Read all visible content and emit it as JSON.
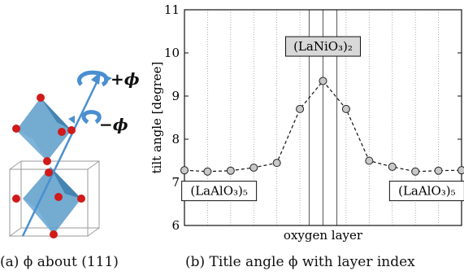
{
  "figure_a": {
    "label_plus": "+ϕ",
    "label_minus": "−ϕ",
    "caption": "(a) ϕ about (111)"
  },
  "figure_b": {
    "caption": "(b) Title angle ϕ with layer index"
  },
  "chart_data": {
    "type": "line",
    "title": "",
    "xlabel": "oxygen layer",
    "ylabel": "tilt angle [degree]",
    "x": [
      1,
      2,
      3,
      4,
      5,
      6,
      7,
      8,
      9,
      10,
      11,
      12,
      13
    ],
    "series": [
      {
        "name": "",
        "values": [
          7.28,
          7.25,
          7.27,
          7.34,
          7.45,
          8.7,
          9.35,
          8.7,
          7.5,
          7.36,
          7.25,
          7.27,
          7.28
        ]
      }
    ],
    "ylim": [
      6,
      11
    ],
    "yticks": [
      6,
      7,
      8,
      9,
      10,
      11
    ],
    "xticks_shown": false,
    "grid": "vertical dotted",
    "annotations": [
      {
        "text": "(LaNiO₃)₂",
        "anchor_x": 7,
        "anchor_y": 10.15
      },
      {
        "text": "(LaAlO₃)₅",
        "anchor_x": 2.5,
        "anchor_y": 6.8
      },
      {
        "text": "(LaAlO₃)₅",
        "anchor_x": 11.5,
        "anchor_y": 6.8
      }
    ],
    "region_markers_x": [
      6.4,
      7.6
    ],
    "colors": {
      "marker_fill": "#c8c8c8",
      "line": "#111111",
      "label_box": "#d8d8d8"
    }
  }
}
